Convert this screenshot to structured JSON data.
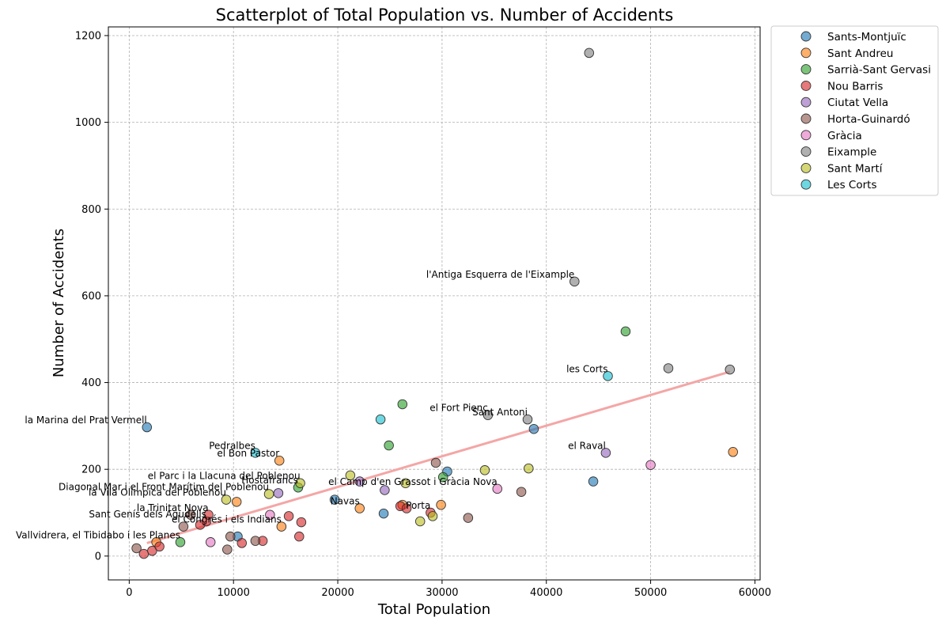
{
  "chart_data": {
    "type": "scatter",
    "title": "Scatterplot of Total Population vs. Number of Accidents",
    "xlabel": "Total Population",
    "ylabel": "Number of Accidents",
    "xlim": [
      -2000,
      60500
    ],
    "ylim": [
      -55,
      1220
    ],
    "xticks": [
      0,
      10000,
      20000,
      30000,
      40000,
      50000,
      60000
    ],
    "yticks": [
      0,
      200,
      400,
      600,
      800,
      1000,
      1200
    ],
    "grid": true,
    "legend_position": "outside-right",
    "trendline": {
      "color": "#f4a6a6",
      "x": [
        1700,
        57600
      ],
      "y": [
        30,
        425
      ]
    },
    "series": [
      {
        "name": "Sants-Montjuïc",
        "color": "#1f77b4",
        "points": [
          {
            "x": 1700,
            "y": 297
          },
          {
            "x": 10400,
            "y": 45
          },
          {
            "x": 19700,
            "y": 130
          },
          {
            "x": 24400,
            "y": 98
          },
          {
            "x": 30500,
            "y": 195
          },
          {
            "x": 38800,
            "y": 293
          },
          {
            "x": 44500,
            "y": 172
          }
        ]
      },
      {
        "name": "Sant Andreu",
        "color": "#ff7f0e",
        "points": [
          {
            "x": 2600,
            "y": 32
          },
          {
            "x": 10300,
            "y": 125
          },
          {
            "x": 14400,
            "y": 220
          },
          {
            "x": 14600,
            "y": 68
          },
          {
            "x": 22100,
            "y": 110
          },
          {
            "x": 26200,
            "y": 118
          },
          {
            "x": 29900,
            "y": 118
          },
          {
            "x": 57900,
            "y": 240
          }
        ]
      },
      {
        "name": "Sarrià-Sant Gervasi",
        "color": "#2ca02c",
        "points": [
          {
            "x": 4900,
            "y": 32
          },
          {
            "x": 16200,
            "y": 158
          },
          {
            "x": 24900,
            "y": 255
          },
          {
            "x": 26200,
            "y": 350
          },
          {
            "x": 30100,
            "y": 182
          },
          {
            "x": 47600,
            "y": 518
          }
        ]
      },
      {
        "name": "Nou Barris",
        "color": "#d62728",
        "points": [
          {
            "x": 1400,
            "y": 5
          },
          {
            "x": 2200,
            "y": 12
          },
          {
            "x": 2900,
            "y": 22
          },
          {
            "x": 6800,
            "y": 72
          },
          {
            "x": 7400,
            "y": 80
          },
          {
            "x": 7600,
            "y": 95
          },
          {
            "x": 10800,
            "y": 30
          },
          {
            "x": 12800,
            "y": 35
          },
          {
            "x": 15300,
            "y": 92
          },
          {
            "x": 16300,
            "y": 45
          },
          {
            "x": 16500,
            "y": 78
          },
          {
            "x": 26000,
            "y": 115
          },
          {
            "x": 26600,
            "y": 110
          },
          {
            "x": 28900,
            "y": 100
          }
        ]
      },
      {
        "name": "Ciutat Vella",
        "color": "#9467bd",
        "points": [
          {
            "x": 14300,
            "y": 145
          },
          {
            "x": 22100,
            "y": 172
          },
          {
            "x": 24500,
            "y": 152
          },
          {
            "x": 45700,
            "y": 238
          }
        ]
      },
      {
        "name": "Horta-Guinardó",
        "color": "#8c564b",
        "points": [
          {
            "x": 700,
            "y": 18
          },
          {
            "x": 5200,
            "y": 68
          },
          {
            "x": 5900,
            "y": 95
          },
          {
            "x": 9400,
            "y": 15
          },
          {
            "x": 9700,
            "y": 45
          },
          {
            "x": 12100,
            "y": 35
          },
          {
            "x": 29400,
            "y": 215
          },
          {
            "x": 32500,
            "y": 88
          },
          {
            "x": 37600,
            "y": 148
          }
        ]
      },
      {
        "name": "Gràcia",
        "color": "#e377c2",
        "points": [
          {
            "x": 7800,
            "y": 32
          },
          {
            "x": 13500,
            "y": 95
          },
          {
            "x": 35300,
            "y": 155
          },
          {
            "x": 50000,
            "y": 210
          }
        ]
      },
      {
        "name": "Eixample",
        "color": "#7f7f7f",
        "points": [
          {
            "x": 34400,
            "y": 325
          },
          {
            "x": 38200,
            "y": 315
          },
          {
            "x": 42700,
            "y": 633
          },
          {
            "x": 44100,
            "y": 1160
          },
          {
            "x": 51700,
            "y": 433
          },
          {
            "x": 57600,
            "y": 430
          }
        ]
      },
      {
        "name": "Sant Martí",
        "color": "#bcbd22",
        "points": [
          {
            "x": 9300,
            "y": 130
          },
          {
            "x": 13400,
            "y": 143
          },
          {
            "x": 16400,
            "y": 168
          },
          {
            "x": 21200,
            "y": 186
          },
          {
            "x": 26500,
            "y": 168
          },
          {
            "x": 27900,
            "y": 80
          },
          {
            "x": 29100,
            "y": 92
          },
          {
            "x": 34100,
            "y": 198
          },
          {
            "x": 38300,
            "y": 202
          }
        ]
      },
      {
        "name": "Les Corts",
        "color": "#17becf",
        "points": [
          {
            "x": 12100,
            "y": 238
          },
          {
            "x": 24100,
            "y": 315
          },
          {
            "x": 45900,
            "y": 415
          }
        ]
      }
    ],
    "annotations": [
      {
        "text": "l'Antiga Esquerra de l'Eixample",
        "x": 42700,
        "y": 633
      },
      {
        "text": "les Corts",
        "x": 45900,
        "y": 415
      },
      {
        "text": "el Fort Pienc",
        "x": 34400,
        "y": 325
      },
      {
        "text": "Sant Antoni",
        "x": 38200,
        "y": 315
      },
      {
        "text": "la Marina del Prat Vermell",
        "x": 1700,
        "y": 297
      },
      {
        "text": "el Raval",
        "x": 45700,
        "y": 238
      },
      {
        "text": "Pedralbes",
        "x": 12100,
        "y": 238
      },
      {
        "text": "el Bon Pastor",
        "x": 14400,
        "y": 220
      },
      {
        "text": "el Parc i la Llacuna del Poblenou",
        "x": 16400,
        "y": 168
      },
      {
        "text": "Hostafrancs",
        "x": 16200,
        "y": 158
      },
      {
        "text": "el Camp d'en Grassot i Gràcia Nova",
        "x": 35300,
        "y": 155
      },
      {
        "text": "Diagonal Mar i el Front Marítim del Poblenou",
        "x": 13400,
        "y": 143
      },
      {
        "text": "la Vila Olímpica del Poblenou",
        "x": 9300,
        "y": 130
      },
      {
        "text": "Navas",
        "x": 22100,
        "y": 110
      },
      {
        "text": "la Trinitat Nova",
        "x": 7600,
        "y": 95
      },
      {
        "text": "Porta",
        "x": 28900,
        "y": 100
      },
      {
        "text": "Sant Genís dels Agudells",
        "x": 7400,
        "y": 80
      },
      {
        "text": "el Congrés i els Indians",
        "x": 14600,
        "y": 68
      },
      {
        "text": "Vallvidrera, el Tibidabo i les Planes",
        "x": 4900,
        "y": 32
      }
    ]
  }
}
